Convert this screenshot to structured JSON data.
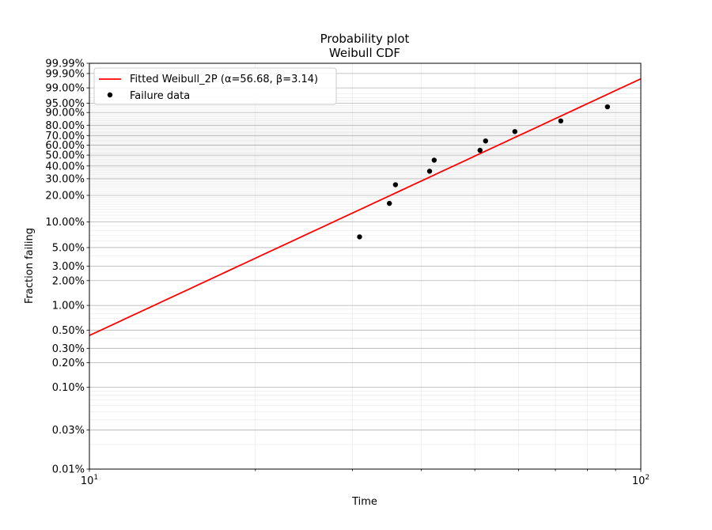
{
  "chart_data": {
    "type": "scatter",
    "title": "Probability plot",
    "subtitle": "Weibull CDF",
    "xlabel": "Time",
    "ylabel": "Fraction failing",
    "x_scale": "log",
    "y_scale": "weibull",
    "xlim": [
      10,
      100
    ],
    "ylim": [
      0.0001,
      0.9999
    ],
    "grid": true,
    "legend_position": "top-left",
    "x_major_ticks": [
      {
        "value": 10,
        "base": "10",
        "exp": "1"
      },
      {
        "value": 100,
        "base": "10",
        "exp": "2"
      }
    ],
    "x_minor_ticks": [
      20,
      30,
      40,
      50,
      60,
      70,
      80,
      90
    ],
    "y_ticks": [
      {
        "value": 0.0001,
        "label": "0.01%"
      },
      {
        "value": 0.0003,
        "label": "0.03%"
      },
      {
        "value": 0.001,
        "label": "0.10%"
      },
      {
        "value": 0.002,
        "label": "0.20%"
      },
      {
        "value": 0.003,
        "label": "0.30%"
      },
      {
        "value": 0.005,
        "label": "0.50%"
      },
      {
        "value": 0.01,
        "label": "1.00%"
      },
      {
        "value": 0.02,
        "label": "2.00%"
      },
      {
        "value": 0.03,
        "label": "3.00%"
      },
      {
        "value": 0.05,
        "label": "5.00%"
      },
      {
        "value": 0.1,
        "label": "10.00%"
      },
      {
        "value": 0.2,
        "label": "20.00%"
      },
      {
        "value": 0.3,
        "label": "30.00%"
      },
      {
        "value": 0.4,
        "label": "40.00%"
      },
      {
        "value": 0.5,
        "label": "50.00%"
      },
      {
        "value": 0.6,
        "label": "60.00%"
      },
      {
        "value": 0.7,
        "label": "70.00%"
      },
      {
        "value": 0.8,
        "label": "80.00%"
      },
      {
        "value": 0.9,
        "label": "90.00%"
      },
      {
        "value": 0.95,
        "label": "95.00%"
      },
      {
        "value": 0.99,
        "label": "99.00%"
      },
      {
        "value": 0.999,
        "label": "99.90%"
      },
      {
        "value": 0.9999,
        "label": "99.99%"
      }
    ],
    "series": [
      {
        "name": "Fitted Weibull_2P (α=56.68, β=3.14)",
        "type": "line",
        "color": "#ff0000",
        "alpha": 56.68,
        "beta": 3.14
      },
      {
        "name": "Failure data",
        "type": "scatter",
        "color": "#000000",
        "points": [
          {
            "x": 30.9,
            "y": 0.067
          },
          {
            "x": 35.0,
            "y": 0.163
          },
          {
            "x": 35.9,
            "y": 0.26
          },
          {
            "x": 41.4,
            "y": 0.356
          },
          {
            "x": 42.2,
            "y": 0.452
          },
          {
            "x": 51.1,
            "y": 0.548
          },
          {
            "x": 52.3,
            "y": 0.644
          },
          {
            "x": 59.1,
            "y": 0.74
          },
          {
            "x": 71.6,
            "y": 0.837
          },
          {
            "x": 87.0,
            "y": 0.933
          }
        ]
      }
    ]
  }
}
